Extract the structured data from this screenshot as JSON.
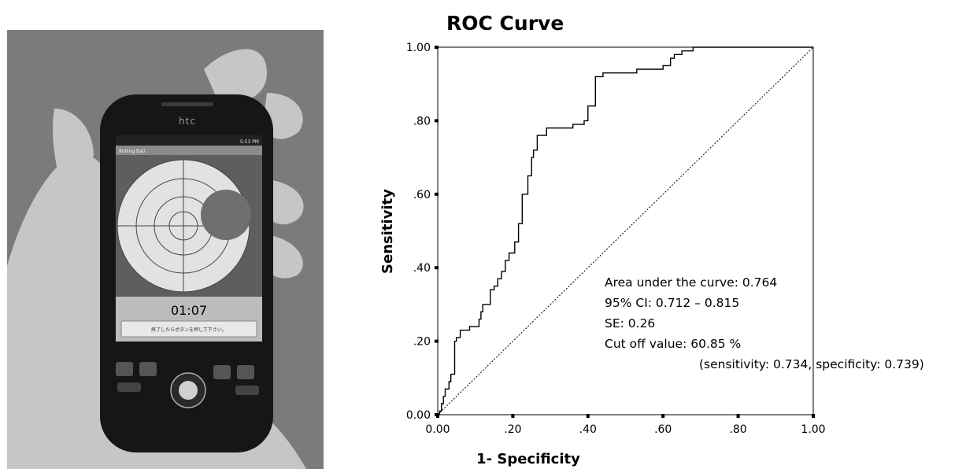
{
  "photo": {
    "brand": "htc",
    "status_time": "5:53 PM",
    "app_title": "Rolling Ball",
    "timer": "01:07",
    "message_button": "終了したらボタンを押して下さい。"
  },
  "chart_data": {
    "type": "line",
    "title": "ROC Curve",
    "xlabel": "1- Specificity",
    "ylabel": "Sensitivity",
    "xlim": [
      0,
      1
    ],
    "ylim": [
      0,
      1
    ],
    "xtick_labels": [
      "0.00",
      ".20",
      ".40",
      ".60",
      ".80",
      "1.00"
    ],
    "ytick_labels": [
      "0.00",
      ".20",
      ".40",
      ".60",
      ".80",
      "1.00"
    ],
    "grid": false,
    "series": [
      {
        "role": "roc",
        "x": [
          0,
          0.005,
          0.005,
          0.01,
          0.01,
          0.015,
          0.015,
          0.02,
          0.02,
          0.03,
          0.03,
          0.035,
          0.035,
          0.045,
          0.045,
          0.05,
          0.05,
          0.06,
          0.06,
          0.085,
          0.085,
          0.11,
          0.11,
          0.115,
          0.115,
          0.12,
          0.12,
          0.14,
          0.14,
          0.15,
          0.15,
          0.16,
          0.16,
          0.17,
          0.17,
          0.18,
          0.18,
          0.19,
          0.19,
          0.205,
          0.205,
          0.215,
          0.215,
          0.225,
          0.225,
          0.24,
          0.24,
          0.25,
          0.25,
          0.255,
          0.255,
          0.265,
          0.265,
          0.29,
          0.29,
          0.36,
          0.36,
          0.39,
          0.39,
          0.4,
          0.4,
          0.42,
          0.42,
          0.44,
          0.44,
          0.47,
          0.47,
          0.53,
          0.53,
          0.6,
          0.6,
          0.62,
          0.62,
          0.63,
          0.63,
          0.65,
          0.65,
          0.68,
          0.68,
          1.0
        ],
        "y": [
          0,
          0,
          0.01,
          0.01,
          0.03,
          0.03,
          0.05,
          0.05,
          0.07,
          0.07,
          0.09,
          0.09,
          0.11,
          0.11,
          0.2,
          0.2,
          0.21,
          0.21,
          0.23,
          0.23,
          0.24,
          0.24,
          0.26,
          0.26,
          0.28,
          0.28,
          0.3,
          0.3,
          0.34,
          0.34,
          0.35,
          0.35,
          0.37,
          0.37,
          0.39,
          0.39,
          0.42,
          0.42,
          0.44,
          0.44,
          0.47,
          0.47,
          0.52,
          0.52,
          0.6,
          0.6,
          0.65,
          0.65,
          0.7,
          0.7,
          0.72,
          0.72,
          0.76,
          0.76,
          0.78,
          0.78,
          0.79,
          0.79,
          0.8,
          0.8,
          0.84,
          0.84,
          0.92,
          0.92,
          0.93,
          0.93,
          0.93,
          0.93,
          0.94,
          0.94,
          0.95,
          0.95,
          0.97,
          0.97,
          0.98,
          0.98,
          0.99,
          0.99,
          1.0,
          1.0
        ]
      },
      {
        "role": "reference",
        "style": "dotted",
        "x": [
          0,
          1
        ],
        "y": [
          0,
          1
        ]
      }
    ],
    "annotations": [
      "Area under the curve: 0.764",
      "95% CI: 0.712 – 0.815",
      "SE: 0.26",
      "Cut off value: 60.85 %",
      "(sensitivity: 0.734, specificity: 0.739)"
    ]
  }
}
